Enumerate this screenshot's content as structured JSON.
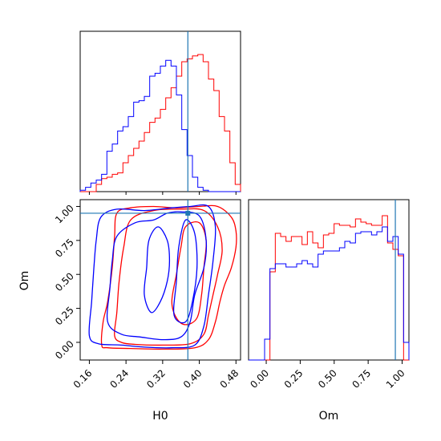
{
  "chart_data": {
    "type": "corner",
    "parameters": [
      "H0",
      "Om"
    ],
    "truth": {
      "H0": 0.375,
      "Om": 0.95
    },
    "colors": {
      "red_series": "#ff0000",
      "blue_series": "#0000ff",
      "truth_line": "#1f77b4"
    },
    "series": [
      {},
      {}
    ],
    "h0_axis": {
      "range": [
        0.14,
        0.49
      ],
      "ticks": [
        0.16,
        0.24,
        0.32,
        0.4,
        0.48
      ],
      "tick_labels": [
        "0.16",
        "0.24",
        "0.32",
        "0.40",
        "0.48"
      ],
      "label": "H0"
    },
    "om_axis": {
      "range": [
        -0.13,
        1.05
      ],
      "ticks": [
        0.0,
        0.25,
        0.5,
        0.75,
        1.0
      ],
      "tick_labels": [
        "0.00",
        "0.25",
        "0.50",
        "0.75",
        "1.00"
      ],
      "label": "Om"
    },
    "marginal_H0": {
      "bin_edges": [
        0.14,
        0.1517,
        0.1633,
        0.175,
        0.1867,
        0.1983,
        0.21,
        0.2217,
        0.2333,
        0.245,
        0.2567,
        0.2683,
        0.28,
        0.2917,
        0.3033,
        0.315,
        0.3267,
        0.3383,
        0.35,
        0.3617,
        0.3733,
        0.385,
        0.3967,
        0.4083,
        0.42,
        0.4317,
        0.4433,
        0.455,
        0.4667,
        0.4783,
        0.49
      ],
      "red_counts": [
        0,
        0,
        0,
        0.05,
        0.09,
        0.1,
        0.12,
        0.13,
        0.2,
        0.25,
        0.3,
        0.35,
        0.41,
        0.48,
        0.51,
        0.57,
        0.65,
        0.72,
        0.8,
        0.9,
        0.92,
        0.94,
        0.95,
        0.9,
        0.78,
        0.7,
        0.52,
        0.42,
        0.2,
        0.05
      ],
      "blue_counts": [
        0.01,
        0.03,
        0.06,
        0.08,
        0.12,
        0.28,
        0.33,
        0.42,
        0.45,
        0.52,
        0.62,
        0.63,
        0.66,
        0.8,
        0.82,
        0.87,
        0.91,
        0.87,
        0.67,
        0.43,
        0.25,
        0.1,
        0.03,
        0.01,
        0,
        0,
        0,
        0,
        0,
        0
      ]
    },
    "marginal_Om": {
      "bin_edges": [
        -0.13,
        -0.0907,
        -0.0513,
        -0.012,
        0.0273,
        0.0667,
        0.106,
        0.1453,
        0.1847,
        0.224,
        0.2633,
        0.3027,
        0.342,
        0.3813,
        0.4207,
        0.46,
        0.4993,
        0.5387,
        0.578,
        0.6173,
        0.6567,
        0.696,
        0.7353,
        0.7747,
        0.814,
        0.8533,
        0.8927,
        0.932,
        0.9713,
        1.0107,
        1.05
      ],
      "red_counts": [
        0,
        0,
        0,
        0,
        0.55,
        0.79,
        0.77,
        0.74,
        0.77,
        0.77,
        0.72,
        0.8,
        0.73,
        0.7,
        0.78,
        0.79,
        0.85,
        0.84,
        0.84,
        0.83,
        0.88,
        0.86,
        0.85,
        0.84,
        0.84,
        0.9,
        0.73,
        0.69,
        0.65,
        0
      ],
      "blue_counts": [
        0,
        0,
        0,
        0.13,
        0.57,
        0.6,
        0.6,
        0.58,
        0.58,
        0.6,
        0.62,
        0.6,
        0.58,
        0.66,
        0.68,
        0.68,
        0.68,
        0.7,
        0.74,
        0.73,
        0.79,
        0.8,
        0.8,
        0.78,
        0.8,
        0.83,
        0.74,
        0.77,
        0.66,
        0.11
      ]
    },
    "contours_2d": {
      "red": [
        {
          "level": "outer",
          "points": [
            [
              0.187,
              -0.02
            ],
            [
              0.19,
              0.15
            ],
            [
              0.2,
              0.3
            ],
            [
              0.21,
              0.55
            ],
            [
              0.215,
              0.78
            ],
            [
              0.22,
              0.95
            ],
            [
              0.25,
              0.99
            ],
            [
              0.3,
              1.0
            ],
            [
              0.35,
              0.99
            ],
            [
              0.4,
              1.0
            ],
            [
              0.44,
              1.0
            ],
            [
              0.47,
              0.92
            ],
            [
              0.48,
              0.82
            ],
            [
              0.48,
              0.7
            ],
            [
              0.47,
              0.55
            ],
            [
              0.455,
              0.42
            ],
            [
              0.445,
              0.3
            ],
            [
              0.435,
              0.15
            ],
            [
              0.42,
              0.02
            ],
            [
              0.39,
              -0.04
            ],
            [
              0.32,
              -0.05
            ],
            [
              0.25,
              -0.045
            ],
            [
              0.2,
              -0.04
            ]
          ]
        },
        {
          "level": "middle",
          "points": [
            [
              0.215,
              0.05
            ],
            [
              0.22,
              0.22
            ],
            [
              0.225,
              0.45
            ],
            [
              0.235,
              0.7
            ],
            [
              0.25,
              0.9
            ],
            [
              0.3,
              0.97
            ],
            [
              0.36,
              0.98
            ],
            [
              0.41,
              0.97
            ],
            [
              0.44,
              0.85
            ],
            [
              0.45,
              0.68
            ],
            [
              0.44,
              0.5
            ],
            [
              0.43,
              0.35
            ],
            [
              0.42,
              0.2
            ],
            [
              0.41,
              0.06
            ],
            [
              0.38,
              -0.01
            ],
            [
              0.32,
              -0.02
            ],
            [
              0.26,
              -0.015
            ],
            [
              0.23,
              0.0
            ]
          ]
        },
        {
          "level": "inner",
          "points": [
            [
              0.34,
              0.3
            ],
            [
              0.35,
              0.5
            ],
            [
              0.36,
              0.7
            ],
            [
              0.37,
              0.85
            ],
            [
              0.4,
              0.88
            ],
            [
              0.415,
              0.75
            ],
            [
              0.41,
              0.55
            ],
            [
              0.405,
              0.35
            ],
            [
              0.395,
              0.18
            ],
            [
              0.37,
              0.13
            ],
            [
              0.35,
              0.18
            ]
          ]
        }
      ],
      "blue": [
        {
          "level": "outer",
          "points": [
            [
              0.16,
              0.05
            ],
            [
              0.165,
              0.3
            ],
            [
              0.17,
              0.55
            ],
            [
              0.175,
              0.75
            ],
            [
              0.185,
              0.92
            ],
            [
              0.22,
              0.98
            ],
            [
              0.28,
              0.97
            ],
            [
              0.34,
              0.99
            ],
            [
              0.38,
              1.0
            ],
            [
              0.42,
              1.0
            ],
            [
              0.435,
              0.85
            ],
            [
              0.43,
              0.6
            ],
            [
              0.42,
              0.35
            ],
            [
              0.41,
              0.12
            ],
            [
              0.39,
              -0.02
            ],
            [
              0.34,
              -0.04
            ],
            [
              0.28,
              -0.035
            ],
            [
              0.23,
              -0.02
            ],
            [
              0.18,
              -0.01
            ]
          ]
        },
        {
          "level": "middle",
          "points": [
            [
              0.2,
              0.15
            ],
            [
              0.205,
              0.4
            ],
            [
              0.21,
              0.6
            ],
            [
              0.22,
              0.78
            ],
            [
              0.26,
              0.88
            ],
            [
              0.3,
              0.9
            ],
            [
              0.33,
              0.95
            ],
            [
              0.36,
              0.96
            ],
            [
              0.4,
              0.93
            ],
            [
              0.415,
              0.75
            ],
            [
              0.41,
              0.55
            ],
            [
              0.39,
              0.35
            ],
            [
              0.38,
              0.15
            ],
            [
              0.36,
              0.04
            ],
            [
              0.32,
              0.02
            ],
            [
              0.27,
              0.04
            ],
            [
              0.23,
              0.06
            ]
          ]
        },
        {
          "level": "inner",
          "points": [
            [
              0.28,
              0.35
            ],
            [
              0.285,
              0.55
            ],
            [
              0.29,
              0.75
            ],
            [
              0.31,
              0.85
            ],
            [
              0.33,
              0.75
            ],
            [
              0.335,
              0.6
            ],
            [
              0.33,
              0.45
            ],
            [
              0.315,
              0.3
            ],
            [
              0.295,
              0.22
            ]
          ]
        },
        {
          "level": "inner-2",
          "points": [
            [
              0.345,
              0.2
            ],
            [
              0.35,
              0.45
            ],
            [
              0.355,
              0.7
            ],
            [
              0.37,
              0.9
            ],
            [
              0.39,
              0.8
            ],
            [
              0.395,
              0.55
            ],
            [
              0.385,
              0.3
            ],
            [
              0.37,
              0.15
            ]
          ]
        }
      ]
    }
  }
}
